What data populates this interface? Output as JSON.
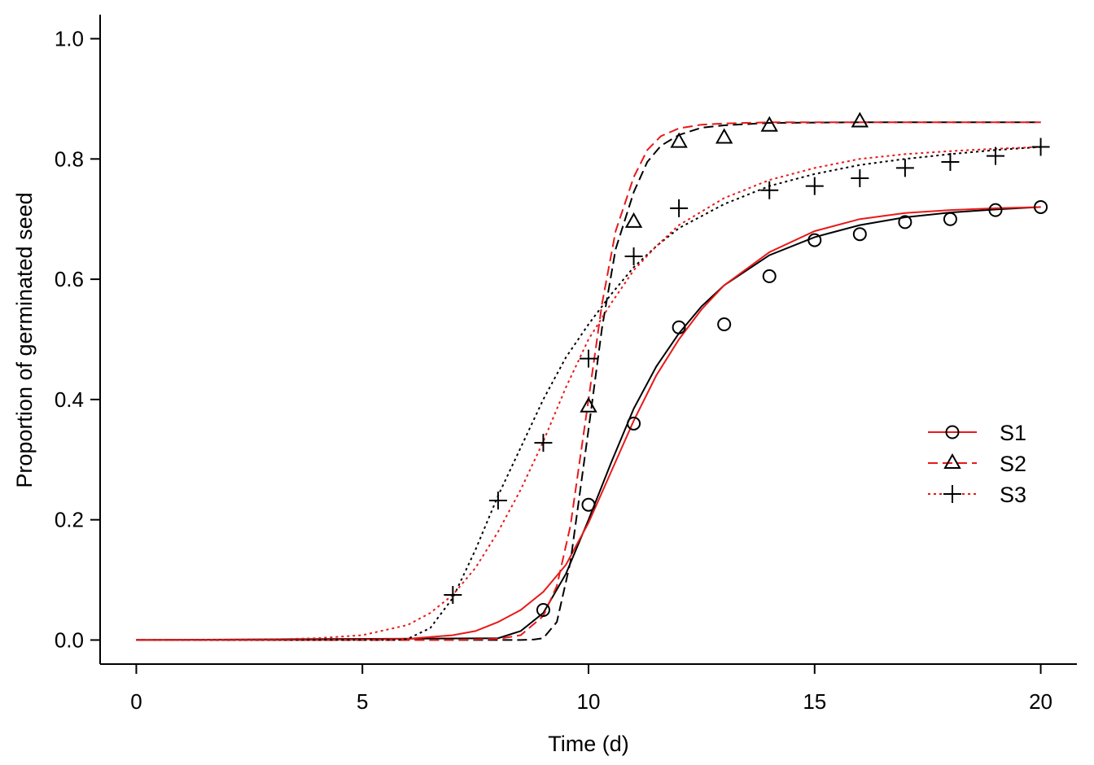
{
  "chart_data": {
    "type": "scatter",
    "xlabel": "Time (d)",
    "ylabel": "Proportion of germinated seed",
    "xlim": [
      -0.8,
      20.8
    ],
    "ylim": [
      -0.04,
      1.04
    ],
    "x_ticks": [
      0,
      5,
      10,
      15,
      20
    ],
    "x_tick_labels": [
      "0",
      "5",
      "10",
      "15",
      "20"
    ],
    "y_ticks": [
      0,
      0.2,
      0.4,
      0.6,
      0.8,
      1.0
    ],
    "y_tick_labels": [
      "0.0",
      "0.2",
      "0.4",
      "0.6",
      "0.8",
      "1.0"
    ],
    "grid": false,
    "legend_position": "right",
    "colors": {
      "observed": "#000000",
      "fitted": "#e8191a"
    },
    "series": [
      {
        "name": "S1",
        "marker": "circle",
        "line_style": "solid",
        "points": {
          "x": [
            9,
            10,
            11,
            12,
            13,
            14,
            15,
            16,
            17,
            18,
            19,
            20
          ],
          "y": [
            0.05,
            0.225,
            0.36,
            0.52,
            0.525,
            0.605,
            0.665,
            0.675,
            0.695,
            0.7,
            0.715,
            0.72
          ]
        },
        "fit_black": {
          "x": [
            0,
            8,
            8.5,
            9,
            9.5,
            10,
            10.5,
            11,
            11.5,
            12,
            12.5,
            13,
            14,
            15,
            16,
            17,
            18,
            19,
            20
          ],
          "y": [
            0,
            0.003,
            0.015,
            0.045,
            0.11,
            0.2,
            0.295,
            0.385,
            0.455,
            0.51,
            0.555,
            0.59,
            0.64,
            0.67,
            0.69,
            0.703,
            0.711,
            0.716,
            0.72
          ]
        },
        "fit_red": {
          "x": [
            0,
            4,
            6,
            7,
            7.5,
            8,
            8.5,
            9,
            9.5,
            10,
            10.5,
            11,
            11.5,
            12,
            12.5,
            13,
            14,
            15,
            16,
            17,
            18,
            19,
            20
          ],
          "y": [
            0,
            0,
            0.002,
            0.008,
            0.015,
            0.03,
            0.05,
            0.08,
            0.125,
            0.195,
            0.28,
            0.365,
            0.44,
            0.5,
            0.55,
            0.59,
            0.645,
            0.68,
            0.7,
            0.71,
            0.715,
            0.718,
            0.72
          ]
        }
      },
      {
        "name": "S2",
        "marker": "triangle",
        "line_style": "dashed",
        "points": {
          "x": [
            10,
            11,
            12,
            13,
            14,
            16
          ],
          "y": [
            0.388,
            0.695,
            0.828,
            0.835,
            0.855,
            0.862
          ]
        },
        "fit_black": {
          "x": [
            0,
            8.5,
            8.8,
            9,
            9.3,
            9.6,
            10,
            10.3,
            10.6,
            11,
            11.3,
            11.6,
            12,
            12.5,
            13,
            14,
            16,
            18,
            20
          ],
          "y": [
            0,
            0,
            0.001,
            0.003,
            0.03,
            0.13,
            0.35,
            0.52,
            0.65,
            0.745,
            0.795,
            0.822,
            0.84,
            0.852,
            0.856,
            0.86,
            0.861,
            0.861,
            0.861
          ]
        },
        "fit_red": {
          "x": [
            0,
            7,
            8,
            8.5,
            9,
            9.3,
            9.6,
            10,
            10.3,
            10.6,
            11,
            11.3,
            11.6,
            12,
            12.5,
            13,
            14,
            16,
            18,
            20
          ],
          "y": [
            0,
            0,
            0.002,
            0.008,
            0.04,
            0.09,
            0.19,
            0.4,
            0.56,
            0.68,
            0.77,
            0.815,
            0.838,
            0.851,
            0.857,
            0.859,
            0.861,
            0.861,
            0.861,
            0.861
          ]
        }
      },
      {
        "name": "S3",
        "marker": "plus",
        "line_style": "dotted",
        "points": {
          "x": [
            7,
            8,
            9,
            10,
            11,
            12,
            14,
            15,
            16,
            17,
            18,
            19,
            20
          ],
          "y": [
            0.075,
            0.232,
            0.328,
            0.468,
            0.638,
            0.718,
            0.748,
            0.755,
            0.768,
            0.785,
            0.795,
            0.805,
            0.82
          ]
        },
        "fit_black": {
          "x": [
            0,
            5.8,
            6,
            6.5,
            7,
            7.5,
            8,
            8.5,
            9,
            9.5,
            10,
            10.5,
            11,
            11.5,
            12,
            13,
            14,
            15,
            16,
            17,
            18,
            19,
            20
          ],
          "y": [
            0,
            0,
            0.002,
            0.02,
            0.07,
            0.15,
            0.24,
            0.32,
            0.4,
            0.47,
            0.525,
            0.575,
            0.62,
            0.655,
            0.685,
            0.725,
            0.755,
            0.775,
            0.79,
            0.8,
            0.808,
            0.815,
            0.82
          ]
        },
        "fit_red": {
          "x": [
            0,
            3,
            4,
            5,
            6,
            6.5,
            7,
            7.5,
            8,
            8.5,
            9,
            9.5,
            10,
            10.5,
            11,
            11.5,
            12,
            13,
            14,
            15,
            16,
            17,
            18,
            19,
            20
          ],
          "y": [
            0,
            0.001,
            0.003,
            0.008,
            0.025,
            0.045,
            0.075,
            0.12,
            0.18,
            0.25,
            0.33,
            0.42,
            0.5,
            0.56,
            0.615,
            0.655,
            0.69,
            0.735,
            0.765,
            0.785,
            0.8,
            0.808,
            0.813,
            0.817,
            0.82
          ]
        }
      }
    ]
  }
}
